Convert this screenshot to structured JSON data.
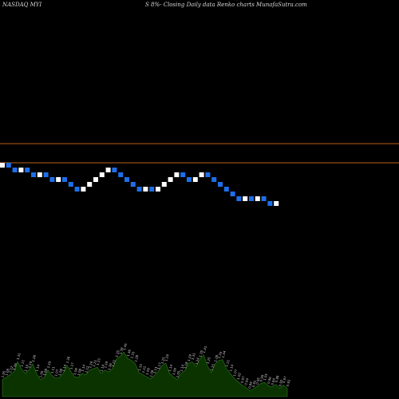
{
  "header": {
    "left": "NASDAQ MYI",
    "right": "S 8%-  Closing Daily data  Renko  charts MunafaSutra.com"
  },
  "colors": {
    "background": "#000000",
    "up_brick": "#ffffff",
    "down_brick": "#1e6fe8",
    "reference_line": "#b8621e",
    "volume_fill": "#0a3300",
    "volume_edge": "#2f7a1f"
  },
  "chart_data": {
    "type": "renko",
    "brick_directions": [
      "up",
      "down",
      "down",
      "up",
      "down",
      "down",
      "up",
      "down",
      "down",
      "up",
      "down",
      "down",
      "down",
      "up",
      "up",
      "up",
      "up",
      "up",
      "down",
      "down",
      "down",
      "down",
      "down",
      "up",
      "down",
      "up",
      "up",
      "up",
      "up",
      "down",
      "down",
      "up",
      "up",
      "down",
      "down",
      "down",
      "down",
      "down",
      "down",
      "up",
      "down",
      "up",
      "down",
      "down",
      "up"
    ],
    "reference_lines": [
      "upper",
      "lower"
    ],
    "volume_labels": [
      "1.05",
      "1.08",
      "1.12",
      "1.16",
      "1.31",
      "1.21",
      "1.14",
      "1.19",
      "1.28",
      "1.14",
      "1.05",
      "1.08",
      "1.19",
      "1.11",
      "1.07",
      "1.08",
      "1.14",
      "1.26",
      "1.17",
      "1.09",
      "1.08",
      "1.14",
      "1.12",
      "1.19",
      "1.21",
      "1.23",
      "1.14",
      "1.19",
      "1.16",
      "1.21",
      "1.35",
      "1.39",
      "1.45",
      "1.36",
      "1.33",
      "1.28",
      "1.15",
      "1.12",
      "1.09",
      "1.06",
      "1.11",
      "1.17",
      "1.25",
      "1.29",
      "1.14",
      "1.09",
      "1.05",
      "1.14",
      "1.18",
      "1.29",
      "1.31",
      "1.24",
      "1.35",
      "1.41",
      "1.25",
      "1.15",
      "1.28",
      "1.33",
      "1.34",
      "1.21",
      "1.14",
      "1.07",
      "1.02",
      "0.97",
      "0.94",
      "0.89",
      "0.91",
      "0.95",
      "0.99",
      "1.01",
      "0.96",
      "0.94",
      "0.98",
      "0.92",
      "0.97",
      "0.92"
    ]
  }
}
